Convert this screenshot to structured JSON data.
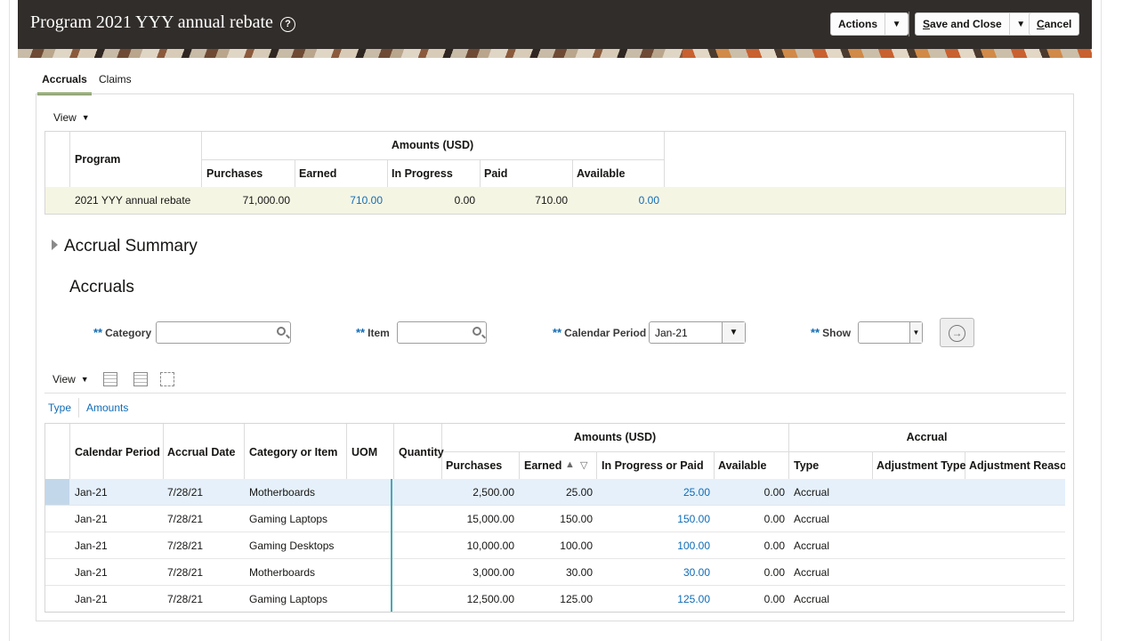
{
  "header": {
    "title": "Program 2021 YYY annual rebate",
    "help_icon": "?",
    "actions_label": "Actions",
    "save_close_label": "Save and Close",
    "save_close_mnemonic": "S",
    "save_close_rest": "ave and Close",
    "cancel_mnemonic": "C",
    "cancel_rest": "ancel",
    "cancel_label": "Cancel"
  },
  "tabs": [
    {
      "label": "Accruals"
    },
    {
      "label": "Claims"
    }
  ],
  "summary": {
    "view_label": "View",
    "col_program": "Program",
    "group_header": "Amounts (USD)",
    "columns": [
      "Purchases",
      "Earned",
      "In Progress",
      "Paid",
      "Available"
    ],
    "row": {
      "program": "2021 YYY annual rebate",
      "purchases": "71,000.00",
      "earned": "710.00",
      "in_progress": "0.00",
      "paid": "710.00",
      "available": "0.00"
    }
  },
  "accrual_summary_title": "Accrual Summary",
  "accruals_title": "Accruals",
  "search": {
    "required_marker": "**",
    "category_label": "Category",
    "category_value": "",
    "item_label": "Item",
    "item_value": "",
    "calendar_label": "Calendar Period",
    "calendar_value": "Jan-21",
    "show_label": "Show",
    "show_value": ""
  },
  "table_toolbar": {
    "view_label": "View"
  },
  "column_sets": [
    "Type",
    "Amounts"
  ],
  "accruals_table": {
    "headers": {
      "calendar_period": "Calendar Period",
      "accrual_date": "Accrual Date",
      "category_or_item": "Category or Item",
      "uom": "UOM",
      "quantity": "Quantity",
      "amounts_group": "Amounts (USD)",
      "purchases": "Purchases",
      "earned": "Earned",
      "in_progress_or_paid": "In Progress or Paid",
      "available": "Available",
      "accrual_group": "Accrual",
      "type": "Type",
      "adjustment_type": "Adjustment Type",
      "adjustment_reason": "Adjustment Reaso"
    },
    "rows": [
      {
        "period": "Jan-21",
        "date": "7/28/21",
        "item": "Motherboards",
        "purchases": "2,500.00",
        "earned": "25.00",
        "in_progress_paid": "25.00",
        "available": "0.00",
        "type": "Accrual"
      },
      {
        "period": "Jan-21",
        "date": "7/28/21",
        "item": "Gaming Laptops",
        "purchases": "15,000.00",
        "earned": "150.00",
        "in_progress_paid": "150.00",
        "available": "0.00",
        "type": "Accrual"
      },
      {
        "period": "Jan-21",
        "date": "7/28/21",
        "item": "Gaming Desktops",
        "purchases": "10,000.00",
        "earned": "100.00",
        "in_progress_paid": "100.00",
        "available": "0.00",
        "type": "Accrual"
      },
      {
        "period": "Jan-21",
        "date": "7/28/21",
        "item": "Motherboards",
        "purchases": "3,000.00",
        "earned": "30.00",
        "in_progress_paid": "30.00",
        "available": "0.00",
        "type": "Accrual"
      },
      {
        "period": "Jan-21",
        "date": "7/28/21",
        "item": "Gaming Laptops",
        "purchases": "12,500.00",
        "earned": "125.00",
        "in_progress_paid": "125.00",
        "available": "0.00",
        "type": "Accrual"
      }
    ]
  },
  "colors": {
    "header_bg": "#312d2a",
    "link": "#0f6cb6",
    "tab_accent": "#5a7d2b",
    "selected_row": "#e5f0fa"
  }
}
